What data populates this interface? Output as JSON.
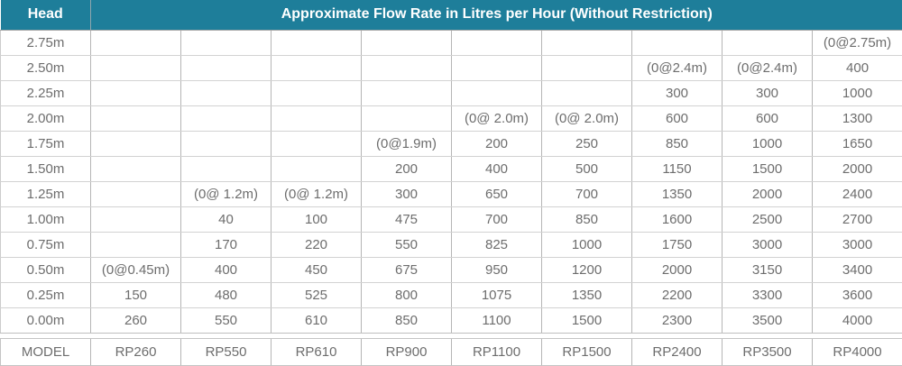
{
  "colors": {
    "header_bg": "#1e7e9a",
    "header_text": "#ffffff",
    "cell_text": "#6d6d6d",
    "grid_vertical": "#b5b5b5",
    "grid_horizontal": "#d2d2d2"
  },
  "table": {
    "head_header": "Head",
    "flow_header": "Approximate Flow Rate in Litres per Hour (Without Restriction)",
    "model_label": "MODEL",
    "models": [
      "RP260",
      "RP550",
      "RP610",
      "RP900",
      "RP1100",
      "RP1500",
      "RP2400",
      "RP3500",
      "RP4000"
    ],
    "rows": [
      {
        "head": "2.75m",
        "values": [
          "",
          "",
          "",
          "",
          "",
          "",
          "",
          "",
          "(0@2.75m)"
        ]
      },
      {
        "head": "2.50m",
        "values": [
          "",
          "",
          "",
          "",
          "",
          "",
          "(0@2.4m)",
          "(0@2.4m)",
          "400"
        ]
      },
      {
        "head": "2.25m",
        "values": [
          "",
          "",
          "",
          "",
          "",
          "",
          "300",
          "300",
          "1000"
        ]
      },
      {
        "head": "2.00m",
        "values": [
          "",
          "",
          "",
          "",
          "(0@ 2.0m)",
          "(0@ 2.0m)",
          "600",
          "600",
          "1300"
        ]
      },
      {
        "head": "1.75m",
        "values": [
          "",
          "",
          "",
          "(0@1.9m)",
          "200",
          "250",
          "850",
          "1000",
          "1650"
        ]
      },
      {
        "head": "1.50m",
        "values": [
          "",
          "",
          "",
          "200",
          "400",
          "500",
          "1150",
          "1500",
          "2000"
        ]
      },
      {
        "head": "1.25m",
        "values": [
          "",
          "(0@ 1.2m)",
          "(0@ 1.2m)",
          "300",
          "650",
          "700",
          "1350",
          "2000",
          "2400"
        ]
      },
      {
        "head": "1.00m",
        "values": [
          "",
          "40",
          "100",
          "475",
          "700",
          "850",
          "1600",
          "2500",
          "2700"
        ]
      },
      {
        "head": "0.75m",
        "values": [
          "",
          "170",
          "220",
          "550",
          "825",
          "1000",
          "1750",
          "3000",
          "3000"
        ]
      },
      {
        "head": "0.50m",
        "values": [
          "(0@0.45m)",
          "400",
          "450",
          "675",
          "950",
          "1200",
          "2000",
          "3150",
          "3400"
        ]
      },
      {
        "head": "0.25m",
        "values": [
          "150",
          "480",
          "525",
          "800",
          "1075",
          "1350",
          "2200",
          "3300",
          "3600"
        ]
      },
      {
        "head": "0.00m",
        "values": [
          "260",
          "550",
          "610",
          "850",
          "1100",
          "1500",
          "2300",
          "3500",
          "4000"
        ]
      }
    ]
  }
}
